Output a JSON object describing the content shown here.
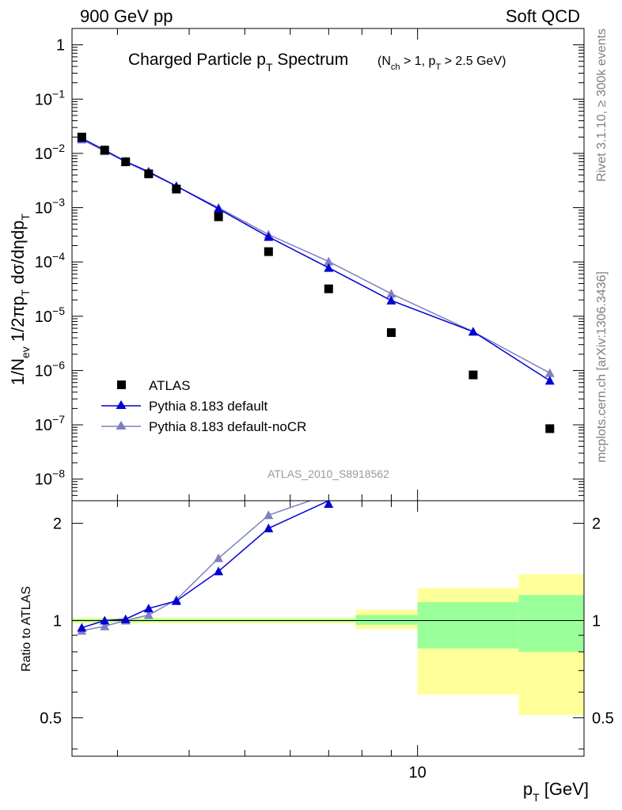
{
  "header": {
    "left": "900 GeV pp",
    "right": "Soft QCD"
  },
  "side": {
    "rivet": "Rivet 3.1.10, ≥ 300k events",
    "mcplots": "mcplots.cern.ch [arXiv:1306.3436]"
  },
  "colors": {
    "atlas": "#000000",
    "pythia_default": "#0000d4",
    "pythia_nocr": "#8080c0",
    "band_outer": "#ffff99",
    "band_inner": "#99ff99",
    "watermark": "#999999"
  },
  "chart_data": [
    {
      "panel": "main",
      "type": "scatter",
      "title": "Charged Particle p_T Spectrum",
      "title_parts": {
        "main": "Charged Particle p",
        "main_sub": "T",
        "main_tail": " Spectrum"
      },
      "cuts_parts": {
        "a": "(N",
        "a_sub": "ch",
        "b": " > 1, p",
        "b_sub": "T",
        "c": " > 2.5 GeV)"
      },
      "subtitle": "(N_ch > 1, p_T > 2.5 GeV)",
      "watermark": "ATLAS_2010_S8918562",
      "ylabel": "1/N_ev 1/2πp_T dσ/dηdp_T",
      "ylabel_parts": {
        "p1": "1/N",
        "p1_sub": "ev",
        "p2": " 1/2πp",
        "p2_sub": "T",
        "p3": " dσ/dηdp",
        "p3_sub": "T"
      },
      "yscale": "log",
      "ylim": [
        4e-09,
        2.0
      ],
      "ytick_labels": [
        {
          "base": "1",
          "exp": ""
        },
        {
          "base": "10",
          "exp": "−1"
        },
        {
          "base": "10",
          "exp": "−2"
        },
        {
          "base": "10",
          "exp": "−3"
        },
        {
          "base": "10",
          "exp": "−4"
        },
        {
          "base": "10",
          "exp": "−5"
        },
        {
          "base": "10",
          "exp": "−6"
        },
        {
          "base": "10",
          "exp": "−7"
        },
        {
          "base": "10",
          "exp": "−8"
        }
      ],
      "legend": [
        "ATLAS",
        "Pythia 8.183 default",
        "Pythia 8.183 default-noCR"
      ],
      "legend_position": "bottom-left",
      "series": [
        {
          "name": "ATLAS",
          "style": "markers",
          "x": [
            2.6,
            2.85,
            3.1,
            3.4,
            3.8,
            4.5,
            5.5,
            7.0,
            9.0,
            12.5,
            17.0
          ],
          "y": [
            0.02,
            0.0115,
            0.007,
            0.0042,
            0.0022,
            0.00068,
            0.000155,
            3.2e-05,
            5e-06,
            8.3e-07,
            8.5e-08
          ]
        },
        {
          "name": "Pythia 8.183 default",
          "style": "line-triangle",
          "x": [
            2.6,
            2.85,
            3.1,
            3.4,
            3.8,
            4.5,
            5.5,
            7.0,
            9.0,
            12.5,
            17.0
          ],
          "y": [
            0.019,
            0.0115,
            0.0071,
            0.0046,
            0.0025,
            0.00095,
            0.00029,
            7.8e-05,
            1.95e-05,
            5.2e-06,
            6.5e-07
          ]
        },
        {
          "name": "Pythia 8.183 default-noCR",
          "style": "line-triangle",
          "x": [
            2.6,
            2.85,
            3.1,
            3.4,
            3.8,
            4.5,
            5.5,
            7.0,
            9.0,
            12.5,
            17.0
          ],
          "y": [
            0.018,
            0.011,
            0.007,
            0.0044,
            0.0025,
            0.001,
            0.00032,
            0.000102,
            2.6e-05,
            5.2e-06,
            9e-07
          ]
        }
      ]
    },
    {
      "panel": "ratio",
      "type": "line",
      "ylabel": "Ratio to ATLAS",
      "yscale": "log",
      "ylim": [
        0.38,
        2.35
      ],
      "yticks": [
        0.5,
        1,
        2
      ],
      "ytick_labels": [
        "0.5",
        "1",
        "2"
      ],
      "xlabel": "p_T  [GeV]",
      "xlabel_parts": {
        "p": "p",
        "p_sub": "T",
        "unit": "  [GeV]"
      },
      "xscale": "log",
      "xlim": [
        2.5,
        19.5
      ],
      "xtick_labels": [
        "10"
      ],
      "reference_line": 1,
      "uncertainty_bands": [
        {
          "x_low": 2.5,
          "x_high": 7.8,
          "outer": [
            0.98,
            1.02
          ],
          "inner": [
            0.99,
            1.01
          ]
        },
        {
          "x_low": 7.8,
          "x_high": 10.0,
          "outer": [
            0.94,
            1.08
          ],
          "inner": [
            0.97,
            1.04
          ]
        },
        {
          "x_low": 10.0,
          "x_high": 15.0,
          "outer": [
            0.59,
            1.26
          ],
          "inner": [
            0.82,
            1.14
          ]
        },
        {
          "x_low": 15.0,
          "x_high": 19.5,
          "outer": [
            0.51,
            1.39
          ],
          "inner": [
            0.8,
            1.2
          ]
        }
      ],
      "series": [
        {
          "name": "Pythia 8.183 default",
          "x": [
            2.6,
            2.85,
            3.1,
            3.4,
            3.8,
            4.5,
            5.5,
            7.0
          ],
          "y": [
            0.95,
            1.0,
            1.01,
            1.09,
            1.15,
            1.42,
            1.93,
            2.35
          ]
        },
        {
          "name": "Pythia 8.183 default-noCR",
          "x": [
            2.6,
            2.85,
            3.1,
            3.4,
            3.8,
            4.5,
            5.5,
            6.5
          ],
          "y": [
            0.93,
            0.96,
            1.0,
            1.04,
            1.16,
            1.56,
            2.12,
            2.35
          ]
        }
      ]
    }
  ]
}
